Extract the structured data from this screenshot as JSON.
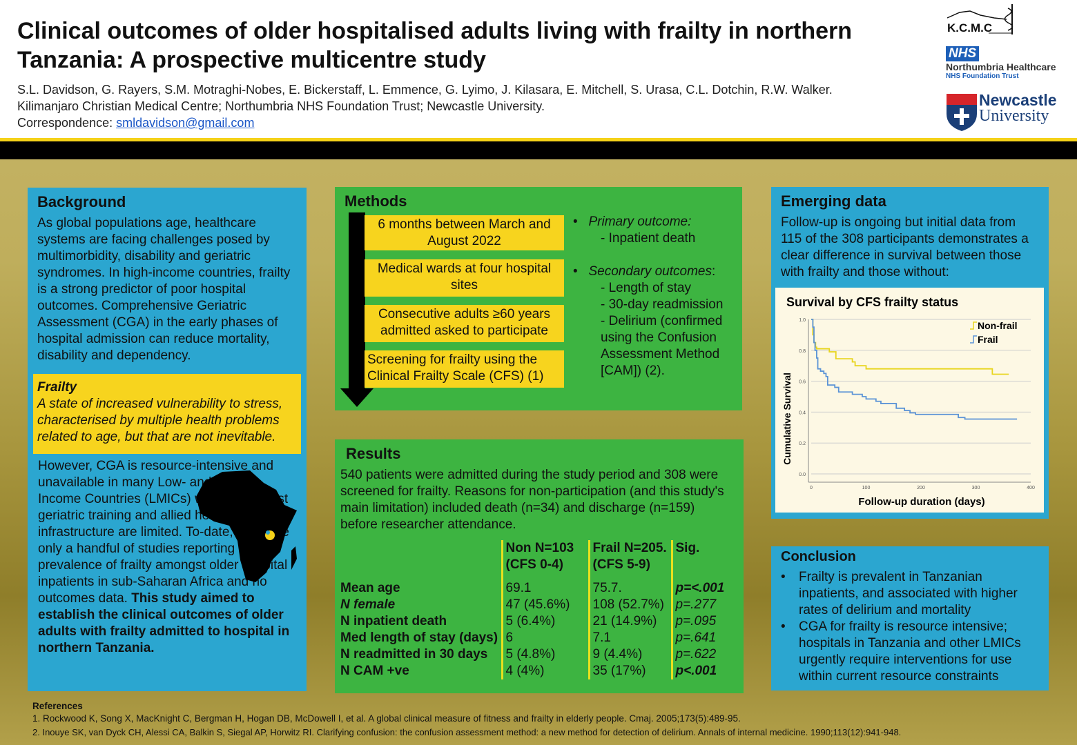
{
  "title": "Clinical outcomes of older hospitalised adults living with frailty in northern Tanzania: A prospective multicentre study",
  "authors": "S.L. Davidson, G. Rayers, S.M. Motraghi-Nobes, E. Bickerstaff, L. Emmence, G. Lyimo, J. Kilasara, E. Mitchell, S. Urasa, C.L. Dotchin, R.W. Walker.",
  "affiliations": "Kilimanjaro Christian Medical Centre; Northumbria NHS Foundation Trust; Newcastle University.",
  "correspondence_label": "Correspondence: ",
  "correspondence_email": "smldavidson@gmail.com",
  "logos": {
    "kcmc": "K.C.M.C",
    "nhs": "NHS",
    "northumbria": "Northumbria Healthcare",
    "nhs_trust": "NHS Foundation Trust",
    "newcastle1": "Newcastle",
    "newcastle2": "University"
  },
  "background": {
    "heading": "Background",
    "p1": "As global populations age, healthcare systems are facing challenges posed by multimorbidity, disability and geriatric syndromes. In high-income countries, frailty is a strong predictor of poor hospital outcomes. Comprehensive Geriatric Assessment (CGA) in the early phases of hospital admission can reduce mortality, disability and dependency.",
    "frailty_heading": "Frailty",
    "frailty_def": "A state of increased vulnerability to stress, characterised by multiple health problems related to age, but that are not inevitable.",
    "p2": "However, CGA is resource-intensive and unavailable in many Low- and Middle Income Countries (LMICs) where specialist geriatric training and allied health infrastructure are limited. To-date, there are only a handful of studies reporting the prevalence of frailty amongst older hospital inpatients in sub-Saharan Africa and no outcomes data. ",
    "p2_bold": "This study aimed to establish the clinical outcomes of older adults with frailty admitted to hospital in northern Tanzania."
  },
  "methods": {
    "heading": "Methods",
    "steps": [
      "6 months between March and August 2022",
      "Medical wards at four hospital sites",
      "Consecutive adults ≥60 years admitted asked to participate",
      "Screening for frailty using the Clinical Frailty Scale (CFS) (1)"
    ],
    "primary_label": "Primary outcome:",
    "primary": [
      "- Inpatient death"
    ],
    "secondary_label": "Secondary outcomes",
    "secondary": [
      "- Length of stay",
      "- 30-day readmission",
      "- Delirium (confirmed using the Confusion Assessment Method [CAM]) (2)."
    ]
  },
  "results": {
    "heading": "Results",
    "text": "540 patients were admitted during the study period and 308 were screened for frailty. Reasons for non-participation (and this study's main limitation) included death (n=34) and discharge (n=159) before researcher attendance.",
    "columns": [
      "Non N=103 (CFS 0-4)",
      "Frail N=205. (CFS 5-9)",
      "Sig."
    ],
    "rows": [
      [
        "Mean age",
        "69.1",
        "75.7.",
        "p=<.001"
      ],
      [
        "N female",
        "47 (45.6%)",
        "108 (52.7%)",
        "p=.277"
      ],
      [
        "N inpatient death",
        "5 (6.4%)",
        "21 (14.9%)",
        "p=.095"
      ],
      [
        "Med length of stay (days)",
        "6",
        "7.1",
        "p=.641"
      ],
      [
        "N readmitted in 30 days",
        "5 (4.8%)",
        "9 (4.4%)",
        "p=.622"
      ],
      [
        "N CAM +ve",
        "4 (4%)",
        "35 (17%)",
        "p<.001"
      ]
    ]
  },
  "emerging": {
    "heading": "Emerging data",
    "text": "Follow-up is ongoing but initial data from 115 of the 308 participants demonstrates a clear difference in survival between those with frailty and those without:"
  },
  "chart_data": {
    "type": "line",
    "title": "Survival by CFS frailty status",
    "xlabel": "Follow-up duration (days)",
    "ylabel": "Cumulative Survival",
    "xlim": [
      0,
      400
    ],
    "ylim": [
      0,
      1.0
    ],
    "xticks": [
      "0",
      "100",
      "200",
      "300",
      "400"
    ],
    "yticks": [
      "0.0",
      "0.2",
      "0.4",
      "0.6",
      "0.8",
      "1.0"
    ],
    "legend": "top-right",
    "grid": true,
    "series": [
      {
        "name": "Non-frail",
        "color": "#e8d51e",
        "steps": [
          [
            0,
            1.0
          ],
          [
            3,
            0.9
          ],
          [
            5,
            0.85
          ],
          [
            8,
            0.82
          ],
          [
            10,
            0.81
          ],
          [
            33,
            0.79
          ],
          [
            45,
            0.745
          ],
          [
            75,
            0.725
          ],
          [
            80,
            0.7
          ],
          [
            100,
            0.68
          ],
          [
            330,
            0.645
          ],
          [
            360,
            0.645
          ]
        ]
      },
      {
        "name": "Frail",
        "color": "#5b93d6",
        "steps": [
          [
            0,
            1.0
          ],
          [
            3,
            0.95
          ],
          [
            5,
            0.85
          ],
          [
            7,
            0.8
          ],
          [
            10,
            0.75
          ],
          [
            12,
            0.68
          ],
          [
            17,
            0.665
          ],
          [
            23,
            0.65
          ],
          [
            27,
            0.63
          ],
          [
            30,
            0.575
          ],
          [
            43,
            0.56
          ],
          [
            50,
            0.53
          ],
          [
            75,
            0.515
          ],
          [
            93,
            0.5
          ],
          [
            100,
            0.485
          ],
          [
            118,
            0.47
          ],
          [
            127,
            0.455
          ],
          [
            155,
            0.425
          ],
          [
            170,
            0.41
          ],
          [
            180,
            0.395
          ],
          [
            190,
            0.385
          ],
          [
            268,
            0.365
          ],
          [
            280,
            0.355
          ],
          [
            375,
            0.355
          ]
        ]
      }
    ]
  },
  "conclusion": {
    "heading": "Conclusion",
    "items": [
      "Frailty is prevalent in Tanzanian inpatients, and associated with higher rates of delirium and mortality",
      "CGA for frailty is resource intensive; hospitals in Tanzania and other LMICs urgently require interventions for use within current resource constraints"
    ]
  },
  "references": {
    "heading": "References",
    "items": [
      "1. Rockwood K, Song X, MacKnight C, Bergman H, Hogan DB, McDowell I, et al. A global clinical measure of fitness and frailty in elderly people. Cmaj. 2005;173(5):489-95.",
      "2. Inouye SK, van Dyck CH, Alessi CA, Balkin S, Siegal AP, Horwitz RI. Clarifying confusion: the confusion assessment method: a new method for detection of delirium. Annals of internal medicine. 1990;113(12):941-948."
    ]
  }
}
